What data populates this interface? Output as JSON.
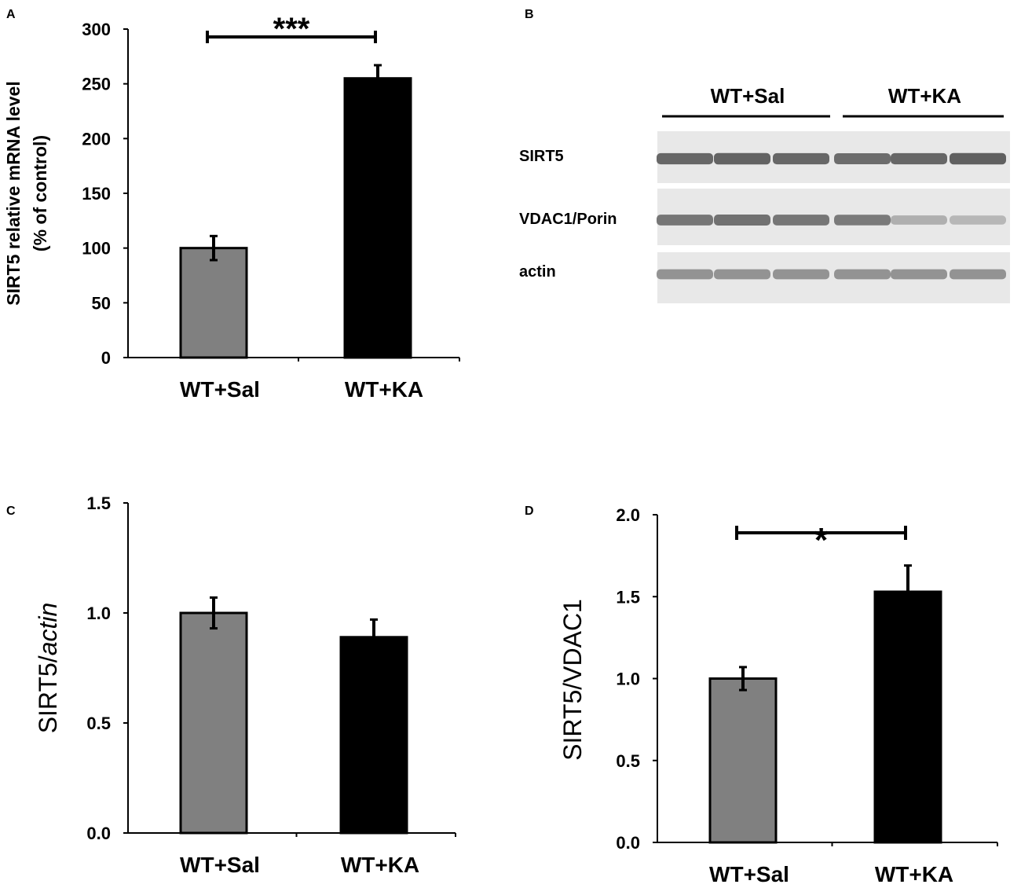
{
  "chart_data": [
    {
      "panel": "A",
      "type": "bar",
      "categories": [
        "WT+Sal",
        "WT+KA"
      ],
      "values": [
        100,
        255
      ],
      "errors": [
        11,
        12
      ],
      "ylabel_lines": [
        "SIRT5 relative mRNA level",
        "(% of control)"
      ],
      "ylim": [
        0,
        300
      ],
      "yticks": [
        "0",
        "50",
        "100",
        "150",
        "200",
        "250",
        "300"
      ],
      "bar_colors": [
        "#808080",
        "#000000"
      ],
      "significance": "***",
      "grid": false
    },
    {
      "panel": "C",
      "type": "bar",
      "categories": [
        "WT+Sal",
        "WT+KA"
      ],
      "values": [
        1.0,
        0.89
      ],
      "errors": [
        0.07,
        0.08
      ],
      "ylabel_prefix": "SIRT5/",
      "ylabel_italic": "actin",
      "ylim": [
        0,
        1.5
      ],
      "yticks": [
        "0.0",
        "0.5",
        "1.0",
        "1.5"
      ],
      "bar_colors": [
        "#808080",
        "#000000"
      ],
      "significance": "",
      "grid": false
    },
    {
      "panel": "D",
      "type": "bar",
      "categories": [
        "WT+Sal",
        "WT+KA"
      ],
      "values": [
        1.0,
        1.53
      ],
      "errors": [
        0.07,
        0.16
      ],
      "ylabel": "SIRT5/VDAC1",
      "ylim": [
        0,
        2.0
      ],
      "yticks": [
        "0.0",
        "0.5",
        "1.0",
        "1.5",
        "2.0"
      ],
      "bar_colors": [
        "#808080",
        "#000000"
      ],
      "significance": "*",
      "grid": false
    }
  ],
  "blot": {
    "panel": "B",
    "groups": [
      "WT+Sal",
      "WT+KA"
    ],
    "rows": [
      {
        "label": "SIRT5",
        "intensities": [
          0.85,
          0.88,
          0.85,
          0.82,
          0.85,
          0.9
        ]
      },
      {
        "label": "VDAC1/Porin",
        "intensities": [
          0.75,
          0.78,
          0.75,
          0.72,
          0.35,
          0.3
        ]
      },
      {
        "label": "actin",
        "intensities": [
          0.55,
          0.55,
          0.55,
          0.55,
          0.55,
          0.55
        ]
      }
    ]
  }
}
